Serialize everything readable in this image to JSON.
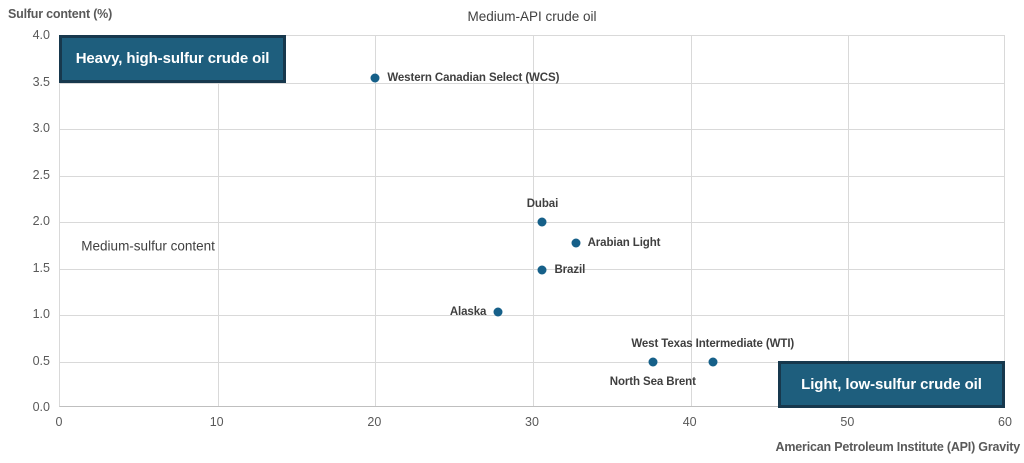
{
  "chart_data": {
    "type": "scatter",
    "title": "Medium-API crude oil",
    "y_axis_title": "Sulfur content (%)",
    "x_axis_title": "American Petroleum Institute (API) Gravity",
    "xlim": [
      0,
      60
    ],
    "ylim": [
      0.0,
      4.0
    ],
    "grid": true,
    "x_ticks": [
      "0",
      "10",
      "20",
      "30",
      "40",
      "50",
      "60"
    ],
    "y_ticks": [
      "4.0",
      "3.5",
      "3.0",
      "2.5",
      "2.0",
      "1.5",
      "1.0",
      "0.5",
      "0.0"
    ],
    "points": [
      {
        "label": "Western Canadian Select (WCS)",
        "x": 20.0,
        "y": 3.55,
        "label_side": "right"
      },
      {
        "label": "Dubai",
        "x": 30.6,
        "y": 2.0,
        "label_side": "above"
      },
      {
        "label": "Arabian Light",
        "x": 32.7,
        "y": 1.77,
        "label_side": "right"
      },
      {
        "label": "Brazil",
        "x": 30.6,
        "y": 1.48,
        "label_side": "right"
      },
      {
        "label": "Alaska",
        "x": 27.8,
        "y": 1.03,
        "label_side": "left"
      },
      {
        "label": "West Texas Intermediate (WTI)",
        "x": 41.4,
        "y": 0.5,
        "label_side": "above"
      },
      {
        "label": "North Sea Brent",
        "x": 37.6,
        "y": 0.5,
        "label_side": "below"
      }
    ],
    "annotations": {
      "heavy_box": {
        "label": "Heavy, high-sulfur crude oil",
        "x0": 0,
        "x1": 14.4,
        "y0": 3.5,
        "y1": 4.0
      },
      "light_box": {
        "label": "Light, low-sulfur crude oil",
        "x0": 45.6,
        "x1": 60,
        "y0": 0.0,
        "y1": 0.5
      },
      "medium_text": {
        "label": "Medium-sulfur content",
        "x": 5.65,
        "y": 1.73
      }
    },
    "colors": {
      "point": "#166089",
      "box_fill": "#1E5E7D",
      "box_border": "#17384D",
      "grid": "#D9D9D9",
      "axis_line": "#BFBFBF",
      "tick_text": "#595959",
      "data_label_text": "#3F3F3F",
      "title_text": "#404040",
      "box_text": "#FFFFFF",
      "background": "#FFFFFF"
    },
    "legend": "none"
  }
}
